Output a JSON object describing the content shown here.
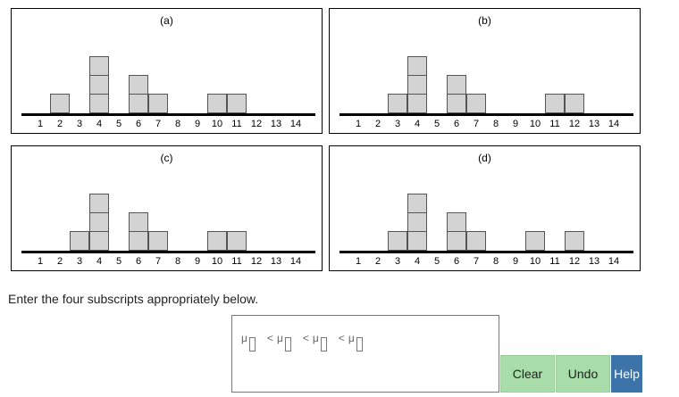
{
  "chart_data": [
    {
      "type": "bar",
      "title": "(a)",
      "categories": [
        1,
        2,
        3,
        4,
        5,
        6,
        7,
        8,
        9,
        10,
        11,
        12,
        13,
        14
      ],
      "values": [
        0,
        1,
        0,
        3,
        0,
        2,
        1,
        0,
        0,
        1,
        1,
        0,
        0,
        0
      ],
      "xlabel": "",
      "ylabel": "",
      "grid": false
    },
    {
      "type": "bar",
      "title": "(b)",
      "categories": [
        1,
        2,
        3,
        4,
        5,
        6,
        7,
        8,
        9,
        10,
        11,
        12,
        13,
        14
      ],
      "values": [
        0,
        0,
        1,
        3,
        0,
        2,
        1,
        0,
        0,
        0,
        1,
        1,
        0,
        0
      ],
      "xlabel": "",
      "ylabel": "",
      "grid": false
    },
    {
      "type": "bar",
      "title": "(c)",
      "categories": [
        1,
        2,
        3,
        4,
        5,
        6,
        7,
        8,
        9,
        10,
        11,
        12,
        13,
        14
      ],
      "values": [
        0,
        0,
        1,
        3,
        0,
        2,
        1,
        0,
        0,
        1,
        1,
        0,
        0,
        0
      ],
      "xlabel": "",
      "ylabel": "",
      "grid": false
    },
    {
      "type": "bar",
      "title": "(d)",
      "categories": [
        1,
        2,
        3,
        4,
        5,
        6,
        7,
        8,
        9,
        10,
        11,
        12,
        13,
        14
      ],
      "values": [
        0,
        0,
        1,
        3,
        0,
        2,
        1,
        0,
        0,
        1,
        0,
        1,
        0,
        0
      ],
      "xlabel": "",
      "ylabel": "",
      "grid": false
    }
  ],
  "prompt": "Enter the four subscripts appropriately below.",
  "expression": {
    "symbol": "μ",
    "operator": "<",
    "slots": [
      "",
      "",
      "",
      ""
    ]
  },
  "buttons": {
    "clear": "Clear",
    "undo": "Undo",
    "help": "Help"
  },
  "colors": {
    "box_fill": "#d3d3d3",
    "button_green": "#a8dca8",
    "button_blue": "#3c73a8"
  }
}
